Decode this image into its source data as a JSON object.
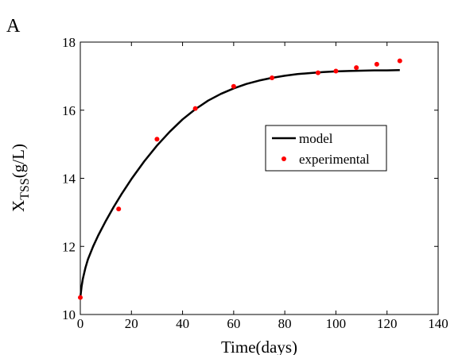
{
  "chart_data": {
    "type": "line",
    "panel_label": "A",
    "title": "",
    "xlabel": "Time(days)",
    "ylabel": {
      "main": "X",
      "subscript": "TSS",
      "suffix": "(g/L)"
    },
    "xlim": [
      0,
      140
    ],
    "ylim": [
      10,
      18
    ],
    "xticks": [
      0,
      20,
      40,
      60,
      80,
      100,
      120,
      140
    ],
    "yticks": [
      10,
      12,
      14,
      16,
      18
    ],
    "grid": false,
    "legend_position": "center-right",
    "series": [
      {
        "name": "model",
        "style": "line",
        "color": "#000000",
        "x": [
          0,
          0.5,
          1,
          2,
          3,
          5,
          7,
          10,
          13,
          16,
          20,
          25,
          30,
          35,
          40,
          45,
          50,
          55,
          60,
          65,
          70,
          75,
          80,
          85,
          90,
          95,
          100,
          105,
          110,
          115,
          120,
          125
        ],
        "values": [
          10.5,
          10.82,
          11.05,
          11.37,
          11.62,
          12.0,
          12.32,
          12.75,
          13.15,
          13.52,
          13.98,
          14.5,
          14.96,
          15.37,
          15.73,
          16.03,
          16.28,
          16.48,
          16.64,
          16.77,
          16.87,
          16.95,
          17.01,
          17.06,
          17.09,
          17.12,
          17.14,
          17.15,
          17.16,
          17.17,
          17.17,
          17.18
        ]
      },
      {
        "name": "experimental",
        "style": "marker",
        "color": "#ff0000",
        "x": [
          0,
          15,
          30,
          45,
          60,
          75,
          93,
          100,
          108,
          116,
          125
        ],
        "values": [
          10.5,
          13.1,
          15.15,
          16.05,
          16.7,
          16.95,
          17.1,
          17.15,
          17.25,
          17.35,
          17.45
        ]
      }
    ]
  }
}
